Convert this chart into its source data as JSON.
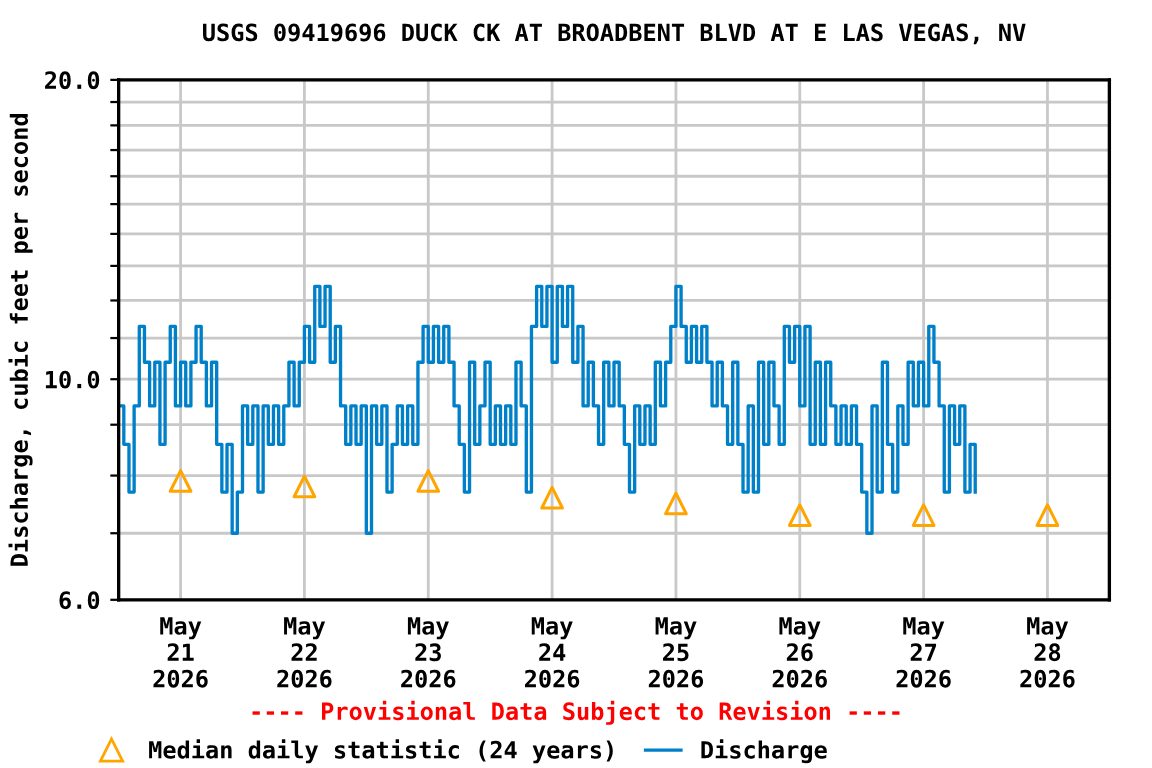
{
  "chart_data": {
    "type": "step",
    "title": "USGS 09419696 DUCK CK AT BROADBENT BLVD AT E LAS VEGAS, NV",
    "ylabel": "Discharge, cubic feet per second",
    "annotations": [
      "---- Provisional Data Subject to Revision ----"
    ],
    "log": "y",
    "grid": true,
    "legend": "bottom",
    "xlim": [
      "2026-05-20T12:00",
      "2026-05-28T12:00"
    ],
    "xticks": [
      {
        "value": "2026-05-21",
        "label": "May\n21\n2026"
      },
      {
        "value": "2026-05-22",
        "label": "May\n22\n2026"
      },
      {
        "value": "2026-05-23",
        "label": "May\n23\n2026"
      },
      {
        "value": "2026-05-24",
        "label": "May\n24\n2026"
      },
      {
        "value": "2026-05-25",
        "label": "May\n25\n2026"
      },
      {
        "value": "2026-05-26",
        "label": "May\n26\n2026"
      },
      {
        "value": "2026-05-27",
        "label": "May\n27\n2026"
      },
      {
        "value": "2026-05-28",
        "label": "May\n28\n2026"
      }
    ],
    "ylim": [
      6,
      20
    ],
    "yticks": [
      {
        "value": 6,
        "label": "6.0"
      },
      {
        "value": 7,
        "label": null
      },
      {
        "value": 8,
        "label": null
      },
      {
        "value": 9,
        "label": null
      },
      {
        "value": 10,
        "label": "10.0"
      },
      {
        "value": 11,
        "label": null
      },
      {
        "value": 12,
        "label": null
      },
      {
        "value": 13,
        "label": null
      },
      {
        "value": 14,
        "label": null
      },
      {
        "value": 15,
        "label": null
      },
      {
        "value": 16,
        "label": null
      },
      {
        "value": 17,
        "label": null
      },
      {
        "value": 18,
        "label": null
      },
      {
        "value": 19,
        "label": null
      },
      {
        "value": 20,
        "label": "20.0"
      }
    ],
    "series": [
      {
        "name": "Median daily statistic (24 years)",
        "type": "scatter",
        "marker": "triangle",
        "color": "#ffa500",
        "x": [
          "2026-05-21",
          "2026-05-22",
          "2026-05-23",
          "2026-05-24",
          "2026-05-25",
          "2026-05-26",
          "2026-05-27",
          "2026-05-28"
        ],
        "values": [
          7.9,
          7.8,
          7.9,
          7.6,
          7.5,
          7.3,
          7.3,
          7.3
        ]
      },
      {
        "name": "Discharge",
        "color": "#0080c8",
        "x": [
          "2026-05-20T12:00",
          "2026-05-20T13:00",
          "2026-05-20T14:00",
          "2026-05-20T15:00",
          "2026-05-20T16:00",
          "2026-05-20T17:00",
          "2026-05-20T18:00",
          "2026-05-20T19:00",
          "2026-05-20T20:00",
          "2026-05-20T21:00",
          "2026-05-20T22:00",
          "2026-05-20T23:00",
          "2026-05-21T00:00",
          "2026-05-21T01:00",
          "2026-05-21T02:00",
          "2026-05-21T03:00",
          "2026-05-21T04:00",
          "2026-05-21T05:00",
          "2026-05-21T06:00",
          "2026-05-21T07:00",
          "2026-05-21T08:00",
          "2026-05-21T09:00",
          "2026-05-21T10:00",
          "2026-05-21T11:00",
          "2026-05-21T12:00",
          "2026-05-21T13:00",
          "2026-05-21T14:00",
          "2026-05-21T15:00",
          "2026-05-21T16:00",
          "2026-05-21T17:00",
          "2026-05-21T18:00",
          "2026-05-21T19:00",
          "2026-05-21T20:00",
          "2026-05-21T21:00",
          "2026-05-21T22:00",
          "2026-05-21T23:00",
          "2026-05-22T00:00",
          "2026-05-22T01:00",
          "2026-05-22T02:00",
          "2026-05-22T03:00",
          "2026-05-22T04:00",
          "2026-05-22T05:00",
          "2026-05-22T06:00",
          "2026-05-22T07:00",
          "2026-05-22T08:00",
          "2026-05-22T09:00",
          "2026-05-22T10:00",
          "2026-05-22T11:00",
          "2026-05-22T12:00",
          "2026-05-22T13:00",
          "2026-05-22T14:00",
          "2026-05-22T15:00",
          "2026-05-22T16:00",
          "2026-05-22T17:00",
          "2026-05-22T18:00",
          "2026-05-22T19:00",
          "2026-05-22T20:00",
          "2026-05-22T21:00",
          "2026-05-22T22:00",
          "2026-05-22T23:00",
          "2026-05-23T00:00",
          "2026-05-23T01:00",
          "2026-05-23T02:00",
          "2026-05-23T03:00",
          "2026-05-23T04:00",
          "2026-05-23T05:00",
          "2026-05-23T06:00",
          "2026-05-23T07:00",
          "2026-05-23T08:00",
          "2026-05-23T09:00",
          "2026-05-23T10:00",
          "2026-05-23T11:00",
          "2026-05-23T12:00",
          "2026-05-23T13:00",
          "2026-05-23T14:00",
          "2026-05-23T15:00",
          "2026-05-23T16:00",
          "2026-05-23T17:00",
          "2026-05-23T18:00",
          "2026-05-23T19:00",
          "2026-05-23T20:00",
          "2026-05-23T21:00",
          "2026-05-23T22:00",
          "2026-05-23T23:00",
          "2026-05-24T00:00",
          "2026-05-24T01:00",
          "2026-05-24T02:00",
          "2026-05-24T03:00",
          "2026-05-24T04:00",
          "2026-05-24T05:00",
          "2026-05-24T06:00",
          "2026-05-24T07:00",
          "2026-05-24T08:00",
          "2026-05-24T09:00",
          "2026-05-24T10:00",
          "2026-05-24T11:00",
          "2026-05-24T12:00",
          "2026-05-24T13:00",
          "2026-05-24T14:00",
          "2026-05-24T15:00",
          "2026-05-24T16:00",
          "2026-05-24T17:00",
          "2026-05-24T18:00",
          "2026-05-24T19:00",
          "2026-05-24T20:00",
          "2026-05-24T21:00",
          "2026-05-24T22:00",
          "2026-05-24T23:00",
          "2026-05-25T00:00",
          "2026-05-25T01:00",
          "2026-05-25T02:00",
          "2026-05-25T03:00",
          "2026-05-25T04:00",
          "2026-05-25T05:00",
          "2026-05-25T06:00",
          "2026-05-25T07:00",
          "2026-05-25T08:00",
          "2026-05-25T09:00",
          "2026-05-25T10:00",
          "2026-05-25T11:00",
          "2026-05-25T12:00",
          "2026-05-25T13:00",
          "2026-05-25T14:00",
          "2026-05-25T15:00",
          "2026-05-25T16:00",
          "2026-05-25T17:00",
          "2026-05-25T18:00",
          "2026-05-25T19:00",
          "2026-05-25T20:00",
          "2026-05-25T21:00",
          "2026-05-25T22:00",
          "2026-05-25T23:00",
          "2026-05-26T00:00",
          "2026-05-26T01:00",
          "2026-05-26T02:00",
          "2026-05-26T03:00",
          "2026-05-26T04:00",
          "2026-05-26T05:00",
          "2026-05-26T06:00",
          "2026-05-26T07:00",
          "2026-05-26T08:00",
          "2026-05-26T09:00",
          "2026-05-26T10:00",
          "2026-05-26T11:00",
          "2026-05-26T12:00",
          "2026-05-26T13:00",
          "2026-05-26T14:00",
          "2026-05-26T15:00",
          "2026-05-26T16:00",
          "2026-05-26T17:00",
          "2026-05-26T18:00",
          "2026-05-26T19:00",
          "2026-05-26T20:00",
          "2026-05-26T21:00",
          "2026-05-26T22:00",
          "2026-05-26T23:00",
          "2026-05-27T00:00",
          "2026-05-27T01:00",
          "2026-05-27T02:00",
          "2026-05-27T03:00",
          "2026-05-27T04:00",
          "2026-05-27T05:00",
          "2026-05-27T06:00",
          "2026-05-27T07:00",
          "2026-05-27T08:00",
          "2026-05-27T09:00",
          "2026-05-27T10:00"
        ],
        "values": [
          9.4,
          8.6,
          7.7,
          9.4,
          11.3,
          10.4,
          9.4,
          10.4,
          8.6,
          10.4,
          11.3,
          9.4,
          10.4,
          9.4,
          10.4,
          11.3,
          10.4,
          9.4,
          10.4,
          8.6,
          7.7,
          8.6,
          7.0,
          7.7,
          9.4,
          8.6,
          9.4,
          7.7,
          9.4,
          8.6,
          9.4,
          8.6,
          9.4,
          10.4,
          9.4,
          10.4,
          11.3,
          10.4,
          12.4,
          11.3,
          12.4,
          10.4,
          11.3,
          9.4,
          8.6,
          9.4,
          8.6,
          9.4,
          7.0,
          9.4,
          8.6,
          9.4,
          7.7,
          8.6,
          9.4,
          8.6,
          9.4,
          8.6,
          10.4,
          11.3,
          10.4,
          11.3,
          10.4,
          11.3,
          10.4,
          9.4,
          8.6,
          7.7,
          10.4,
          8.6,
          9.4,
          10.4,
          8.6,
          9.4,
          8.6,
          9.4,
          8.6,
          10.4,
          9.4,
          7.7,
          11.3,
          12.4,
          11.3,
          12.4,
          10.4,
          12.4,
          11.3,
          12.4,
          10.4,
          11.3,
          9.4,
          10.4,
          9.4,
          8.6,
          10.4,
          9.4,
          10.4,
          9.4,
          8.6,
          7.7,
          9.4,
          8.6,
          9.4,
          8.6,
          10.4,
          9.4,
          10.4,
          11.3,
          12.4,
          11.3,
          10.4,
          11.3,
          10.4,
          11.3,
          10.4,
          9.4,
          10.4,
          9.4,
          8.6,
          10.4,
          8.6,
          7.7,
          9.4,
          7.7,
          10.4,
          8.6,
          10.4,
          9.4,
          8.6,
          11.3,
          10.4,
          11.3,
          9.4,
          11.3,
          8.6,
          10.4,
          8.6,
          10.4,
          9.4,
          8.6,
          9.4,
          8.6,
          9.4,
          8.6,
          7.7,
          7.0,
          9.4,
          7.7,
          10.4,
          8.6,
          7.7,
          9.4,
          8.6,
          10.4,
          9.4,
          10.4,
          9.4,
          11.3,
          10.4,
          9.4,
          7.7,
          9.4,
          8.6,
          9.4,
          7.7,
          8.6,
          7.7
        ]
      }
    ]
  }
}
